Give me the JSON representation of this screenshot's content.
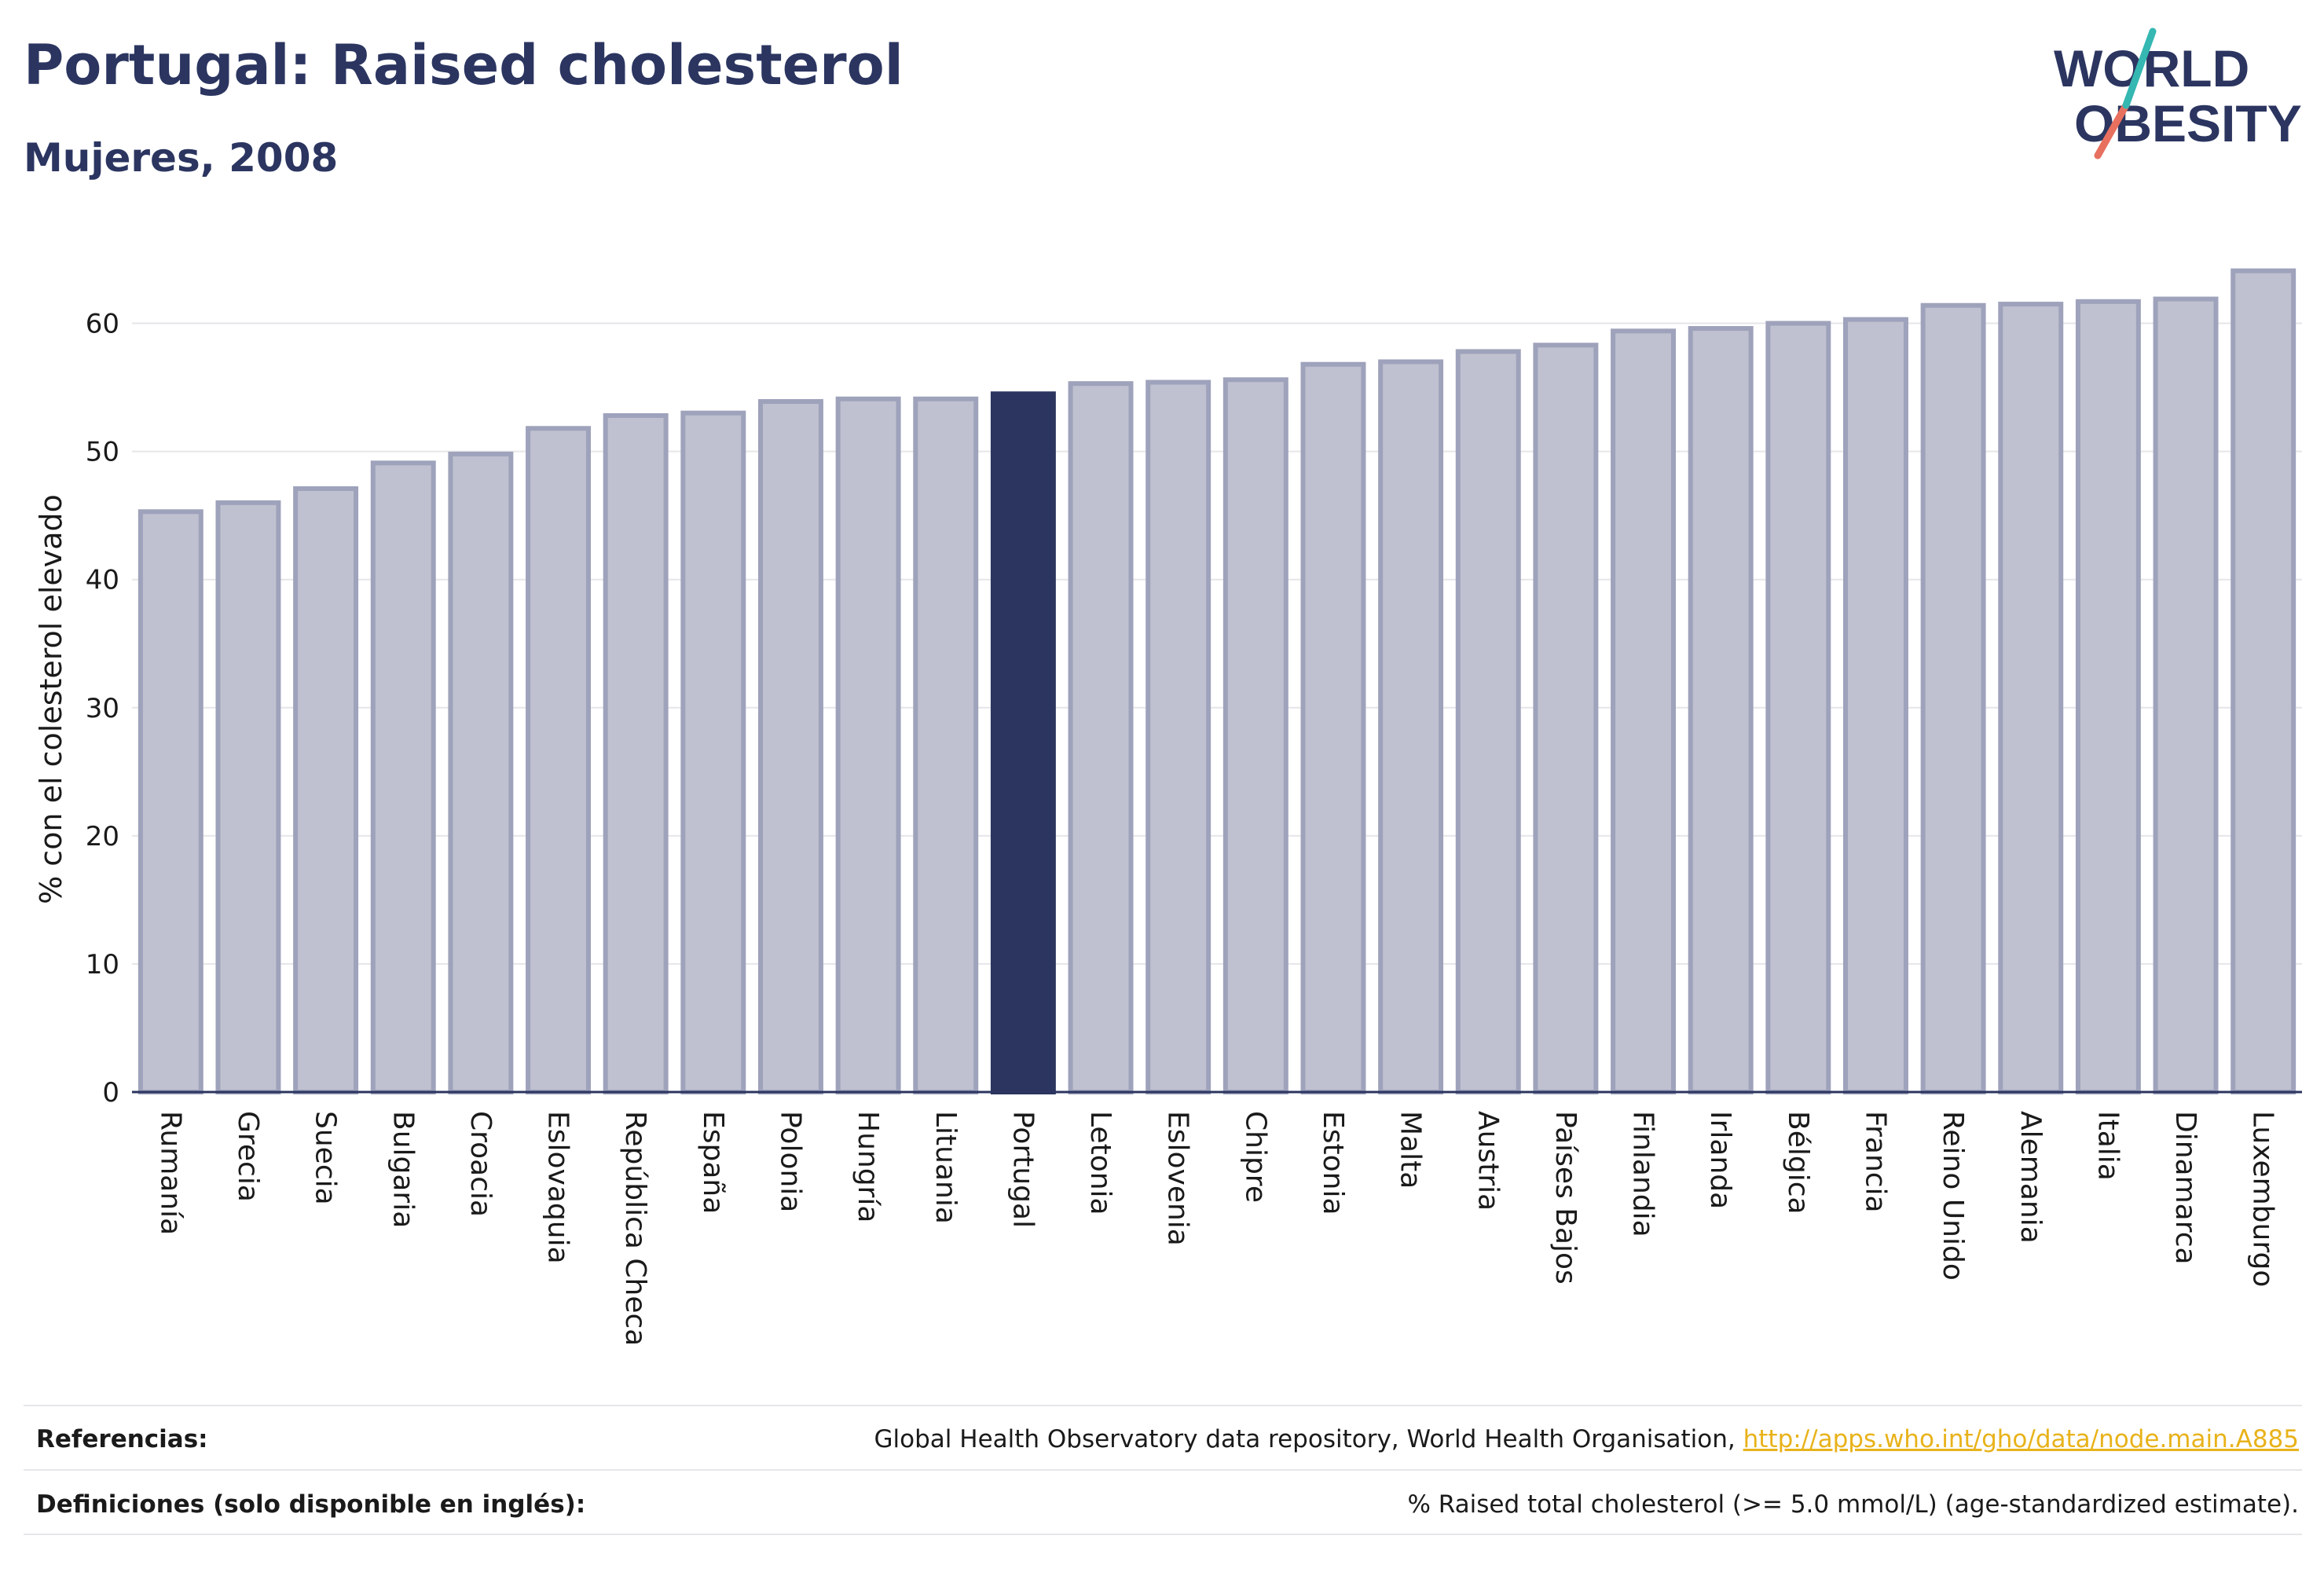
{
  "header": {
    "title": "Portugal: Raised cholesterol",
    "subtitle": "Mujeres, 2008"
  },
  "logo": {
    "line1": "WORLD",
    "line2": "OBESITY",
    "colors": {
      "text": "#2b3560",
      "teal": "#35b7b2",
      "coral": "#e8705f"
    }
  },
  "chart_data": {
    "type": "bar",
    "ylabel": "% con el colesterol elevado",
    "xlabel": "",
    "ylim": [
      0,
      65
    ],
    "yticks": [
      0,
      10,
      20,
      30,
      40,
      50,
      60
    ],
    "grid": true,
    "categories": [
      "Rumanía",
      "Grecia",
      "Suecia",
      "Bulgaria",
      "Croacia",
      "Eslovaquia",
      "República Checa",
      "España",
      "Polonia",
      "Hungría",
      "Lituania",
      "Portugal",
      "Letonia",
      "Eslovenia",
      "Chipre",
      "Estonia",
      "Malta",
      "Austria",
      "Países Bajos",
      "Finlandia",
      "Irlanda",
      "Bélgica",
      "Francia",
      "Reino Unido",
      "Alemania",
      "Italia",
      "Dinamarca",
      "Luxemburgo"
    ],
    "values": [
      45.3,
      46.0,
      47.1,
      49.1,
      49.8,
      51.8,
      52.8,
      53.0,
      53.9,
      54.1,
      54.1,
      54.5,
      55.3,
      55.4,
      55.6,
      56.8,
      57.0,
      57.8,
      58.3,
      59.4,
      59.6,
      60.0,
      60.3,
      61.4,
      61.5,
      61.7,
      61.9,
      64.1
    ],
    "highlight": "Portugal",
    "colors": {
      "bar": "#bfc1d0",
      "bar_border": "#9ea2bb",
      "highlight": "#2b3560",
      "grid": "#e6e6ea",
      "axis": "#2b3560"
    }
  },
  "footer": {
    "references_label": "Referencias:",
    "references_text": "Global Health Observatory data repository, World Health Organisation, ",
    "references_link": "http://apps.who.int/gho/data/node.main.A885",
    "definitions_label": "Definiciones (solo disponible en inglés):",
    "definitions_text": "% Raised total cholesterol (>= 5.0 mmol/L) (age-standardized estimate)."
  }
}
